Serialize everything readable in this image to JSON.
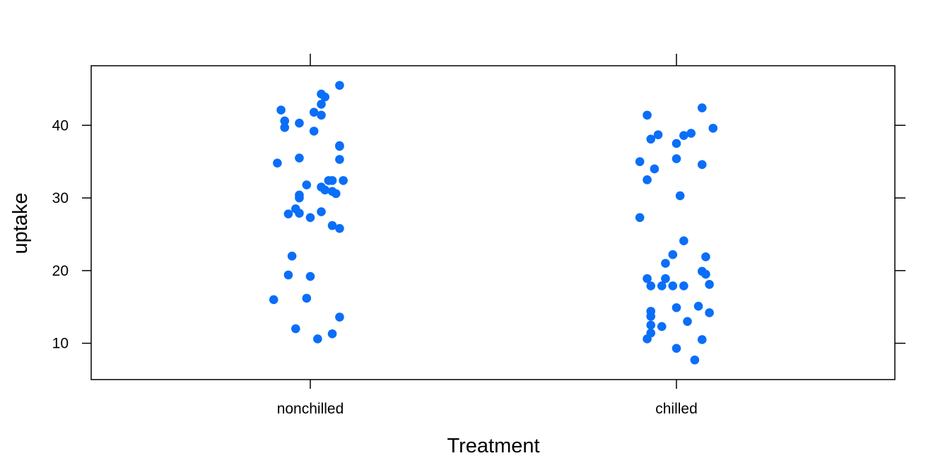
{
  "chart_data": {
    "type": "scatter",
    "xlabel": "Treatment",
    "ylabel": "uptake",
    "categories": [
      "nonchilled",
      "chilled"
    ],
    "ylim": [
      5.0,
      48.2
    ],
    "yticks": [
      10,
      20,
      30,
      40
    ],
    "ytick_labels": [
      "10",
      "20",
      "30",
      "40"
    ],
    "grid": false,
    "point_color": "#0A6EF8",
    "series": [
      {
        "category": "nonchilled",
        "points": [
          {
            "offset": 0.08,
            "y": 45.5
          },
          {
            "offset": 0.03,
            "y": 44.3
          },
          {
            "offset": 0.04,
            "y": 43.9
          },
          {
            "offset": 0.03,
            "y": 42.9
          },
          {
            "offset": -0.08,
            "y": 42.1
          },
          {
            "offset": 0.01,
            "y": 41.8
          },
          {
            "offset": 0.03,
            "y": 41.4
          },
          {
            "offset": -0.07,
            "y": 40.6
          },
          {
            "offset": -0.03,
            "y": 40.3
          },
          {
            "offset": -0.07,
            "y": 39.7
          },
          {
            "offset": 0.01,
            "y": 39.2
          },
          {
            "offset": 0.08,
            "y": 37.2
          },
          {
            "offset": 0.08,
            "y": 37.1
          },
          {
            "offset": -0.03,
            "y": 35.5
          },
          {
            "offset": 0.08,
            "y": 35.3
          },
          {
            "offset": -0.09,
            "y": 34.8
          },
          {
            "offset": 0.05,
            "y": 32.4
          },
          {
            "offset": 0.06,
            "y": 32.4
          },
          {
            "offset": 0.09,
            "y": 32.4
          },
          {
            "offset": -0.01,
            "y": 31.8
          },
          {
            "offset": 0.03,
            "y": 31.5
          },
          {
            "offset": 0.04,
            "y": 31.1
          },
          {
            "offset": 0.06,
            "y": 30.9
          },
          {
            "offset": 0.07,
            "y": 30.6
          },
          {
            "offset": -0.03,
            "y": 30.4
          },
          {
            "offset": -0.03,
            "y": 30.0
          },
          {
            "offset": -0.04,
            "y": 28.5
          },
          {
            "offset": 0.03,
            "y": 28.1
          },
          {
            "offset": -0.06,
            "y": 27.8
          },
          {
            "offset": -0.03,
            "y": 27.9
          },
          {
            "offset": 0.0,
            "y": 27.3
          },
          {
            "offset": 0.06,
            "y": 26.2
          },
          {
            "offset": 0.08,
            "y": 25.8
          },
          {
            "offset": -0.05,
            "y": 22.0
          },
          {
            "offset": -0.06,
            "y": 19.4
          },
          {
            "offset": 0.0,
            "y": 19.2
          },
          {
            "offset": -0.1,
            "y": 16.0
          },
          {
            "offset": -0.01,
            "y": 16.2
          },
          {
            "offset": 0.08,
            "y": 13.6
          },
          {
            "offset": -0.04,
            "y": 12.0
          },
          {
            "offset": 0.06,
            "y": 11.3
          },
          {
            "offset": 0.02,
            "y": 10.6
          }
        ]
      },
      {
        "category": "chilled",
        "points": [
          {
            "offset": 0.07,
            "y": 42.4
          },
          {
            "offset": -0.08,
            "y": 41.4
          },
          {
            "offset": 0.1,
            "y": 39.6
          },
          {
            "offset": 0.04,
            "y": 38.9
          },
          {
            "offset": 0.02,
            "y": 38.6
          },
          {
            "offset": -0.05,
            "y": 38.7
          },
          {
            "offset": -0.07,
            "y": 38.1
          },
          {
            "offset": 0.0,
            "y": 37.5
          },
          {
            "offset": 0.0,
            "y": 35.4
          },
          {
            "offset": -0.1,
            "y": 35.0
          },
          {
            "offset": 0.07,
            "y": 34.6
          },
          {
            "offset": -0.06,
            "y": 34.0
          },
          {
            "offset": -0.08,
            "y": 32.5
          },
          {
            "offset": 0.01,
            "y": 30.3
          },
          {
            "offset": -0.1,
            "y": 27.3
          },
          {
            "offset": 0.02,
            "y": 24.1
          },
          {
            "offset": -0.01,
            "y": 22.2
          },
          {
            "offset": 0.08,
            "y": 21.9
          },
          {
            "offset": -0.03,
            "y": 21.0
          },
          {
            "offset": 0.07,
            "y": 19.9
          },
          {
            "offset": 0.08,
            "y": 19.5
          },
          {
            "offset": -0.08,
            "y": 18.9
          },
          {
            "offset": -0.03,
            "y": 18.9
          },
          {
            "offset": -0.07,
            "y": 17.9
          },
          {
            "offset": -0.04,
            "y": 17.9
          },
          {
            "offset": -0.01,
            "y": 17.9
          },
          {
            "offset": 0.02,
            "y": 17.9
          },
          {
            "offset": 0.09,
            "y": 18.1
          },
          {
            "offset": 0.0,
            "y": 14.9
          },
          {
            "offset": 0.06,
            "y": 15.1
          },
          {
            "offset": -0.07,
            "y": 14.4
          },
          {
            "offset": -0.07,
            "y": 13.7
          },
          {
            "offset": 0.09,
            "y": 14.2
          },
          {
            "offset": 0.03,
            "y": 13.0
          },
          {
            "offset": -0.07,
            "y": 12.5
          },
          {
            "offset": -0.04,
            "y": 12.3
          },
          {
            "offset": -0.07,
            "y": 11.4
          },
          {
            "offset": -0.08,
            "y": 10.6
          },
          {
            "offset": 0.07,
            "y": 10.5
          },
          {
            "offset": 0.0,
            "y": 9.3
          },
          {
            "offset": 0.05,
            "y": 7.7
          }
        ]
      }
    ]
  }
}
